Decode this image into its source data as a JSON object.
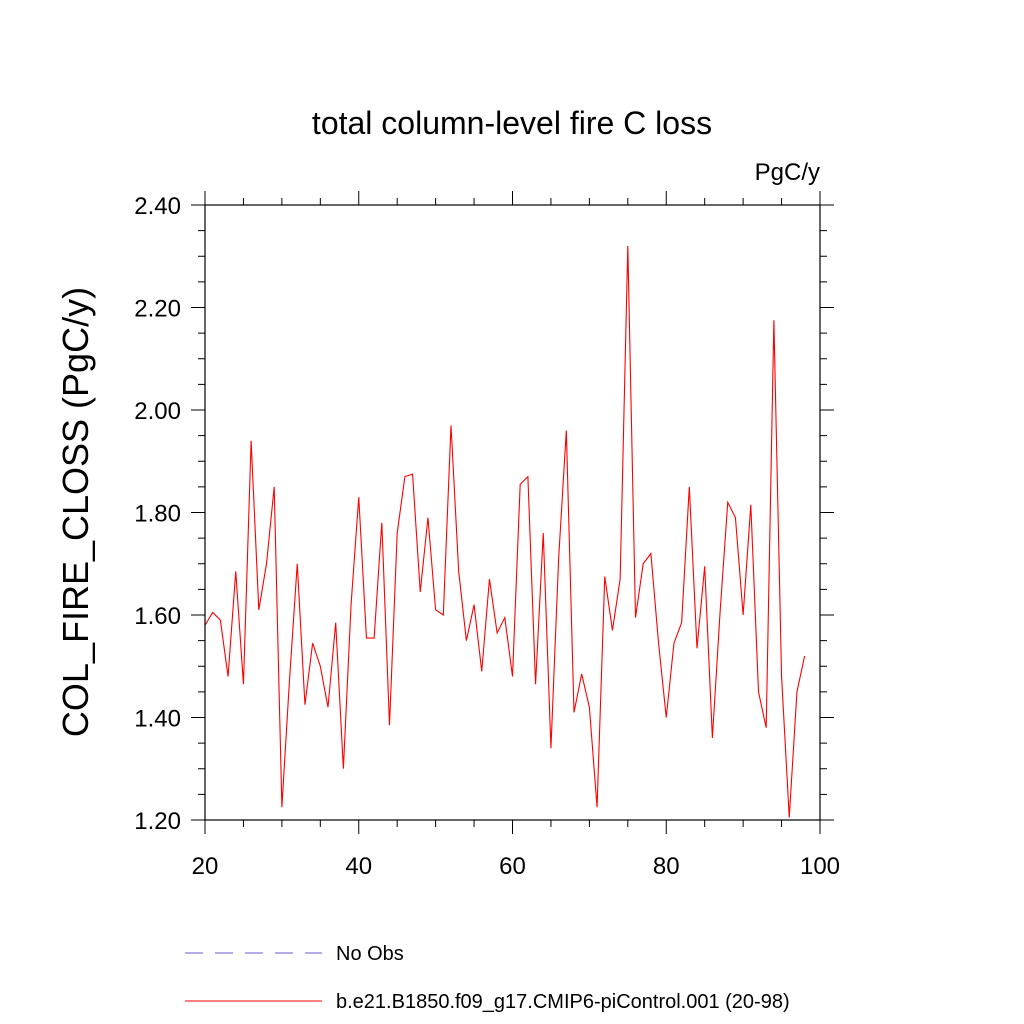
{
  "chart_data": {
    "type": "line",
    "title": "total column-level fire C loss",
    "units": "PgC/y",
    "xlabel": "",
    "ylabel": "COL_FIRE_CLOSS  (PgC/y)",
    "xlim": [
      20,
      100
    ],
    "ylim": [
      1.2,
      2.4
    ],
    "xticks": [
      "20",
      "40",
      "60",
      "80",
      "100"
    ],
    "yticks": [
      "1.20",
      "1.40",
      "1.60",
      "1.80",
      "2.00",
      "2.20",
      "2.40"
    ],
    "grid": false,
    "legend_position": "bottom",
    "series": [
      {
        "name": "No Obs",
        "style": "dashed",
        "color": "#6a5acd",
        "x": [],
        "y": []
      },
      {
        "name": "b.e21.B1850.f09_g17.CMIP6-piControl.001 (20-98)",
        "style": "solid",
        "color": "#ff0000",
        "x": [
          20,
          21,
          22,
          23,
          24,
          25,
          26,
          27,
          28,
          29,
          30,
          31,
          32,
          33,
          34,
          35,
          36,
          37,
          38,
          39,
          40,
          41,
          42,
          43,
          44,
          45,
          46,
          47,
          48,
          49,
          50,
          51,
          52,
          53,
          54,
          55,
          56,
          57,
          58,
          59,
          60,
          61,
          62,
          63,
          64,
          65,
          66,
          67,
          68,
          69,
          70,
          71,
          72,
          73,
          74,
          75,
          76,
          77,
          78,
          79,
          80,
          81,
          82,
          83,
          84,
          85,
          86,
          87,
          88,
          89,
          90,
          91,
          92,
          93,
          94,
          95,
          96,
          97,
          98
        ],
        "y": [
          1.58,
          1.605,
          1.59,
          1.48,
          1.685,
          1.465,
          1.94,
          1.61,
          1.7,
          1.85,
          1.225,
          1.475,
          1.7,
          1.425,
          1.545,
          1.5,
          1.42,
          1.585,
          1.3,
          1.62,
          1.83,
          1.555,
          1.555,
          1.78,
          1.385,
          1.76,
          1.87,
          1.875,
          1.645,
          1.79,
          1.61,
          1.6,
          1.97,
          1.685,
          1.55,
          1.62,
          1.49,
          1.67,
          1.565,
          1.595,
          1.48,
          1.855,
          1.87,
          1.465,
          1.76,
          1.34,
          1.71,
          1.96,
          1.41,
          1.485,
          1.42,
          1.225,
          1.675,
          1.57,
          1.67,
          2.32,
          1.595,
          1.7,
          1.72,
          1.545,
          1.4,
          1.545,
          1.585,
          1.85,
          1.535,
          1.695,
          1.36,
          1.605,
          1.82,
          1.79,
          1.6,
          1.815,
          1.45,
          1.38,
          2.175,
          1.48,
          1.205,
          1.45,
          1.52
        ]
      }
    ]
  }
}
